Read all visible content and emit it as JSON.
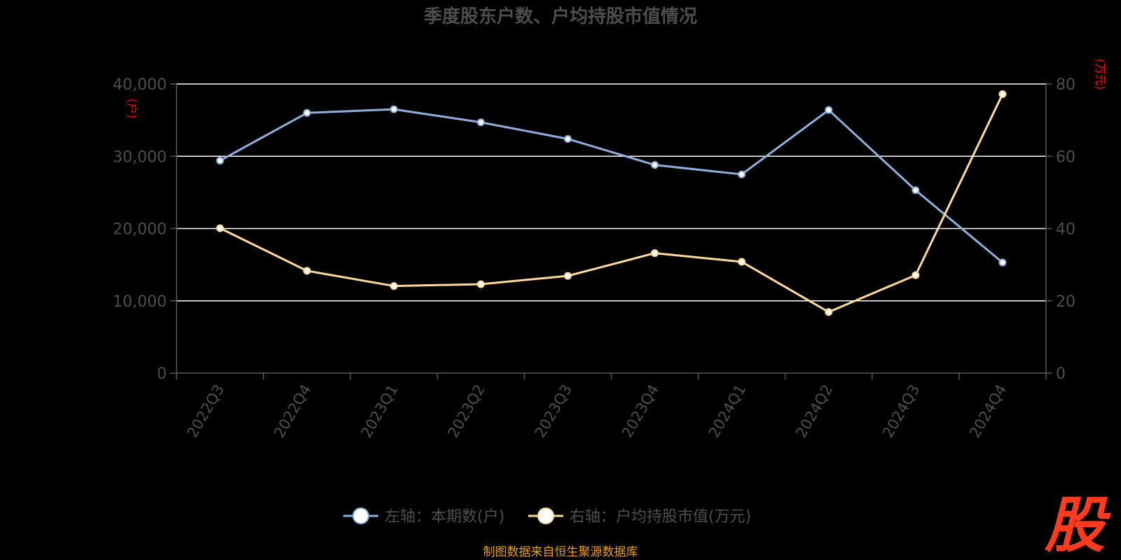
{
  "colors": {
    "background": "#000000",
    "title": "#4d4d4d",
    "axis_text": "#4d4d4d",
    "grid": "#ffffff",
    "axis_line": "#555555",
    "unit_label": "#ff0000",
    "source": "#e8a200",
    "logo": "#ff3b1f",
    "series_left": "#8eaedc",
    "series_right": "#ffd998"
  },
  "chart_data": {
    "type": "line",
    "title": "季度股东户数、户均持股市值情况",
    "categories": [
      "2022Q3",
      "2022Q4",
      "2023Q1",
      "2023Q2",
      "2023Q3",
      "2023Q4",
      "2024Q1",
      "2024Q2",
      "2024Q3",
      "2024Q4"
    ],
    "y_left": {
      "unit": "(户)",
      "ticks": [
        "0",
        "10,000",
        "20,000",
        "30,000",
        "40,000"
      ],
      "range": [
        0,
        40000
      ]
    },
    "y_right": {
      "unit": "(万元)",
      "ticks": [
        "0",
        "20",
        "40",
        "60",
        "80"
      ],
      "range": [
        0,
        80
      ]
    },
    "grid": true,
    "legend_position": "bottom-center",
    "series": [
      {
        "name": "左轴：本期数(户)",
        "axis": "left",
        "values": [
          29400,
          36000,
          36500,
          34700,
          32400,
          28800,
          27500,
          36400,
          25300,
          15300
        ]
      },
      {
        "name": "右轴：户均持股市值(万元)",
        "axis": "right",
        "values": [
          40.1,
          28.3,
          24.1,
          24.6,
          26.9,
          33.2,
          30.8,
          16.9,
          27.1,
          77.2
        ]
      }
    ]
  },
  "source_text": "制图数据来自恒生聚源数据库",
  "logo_text": "股"
}
